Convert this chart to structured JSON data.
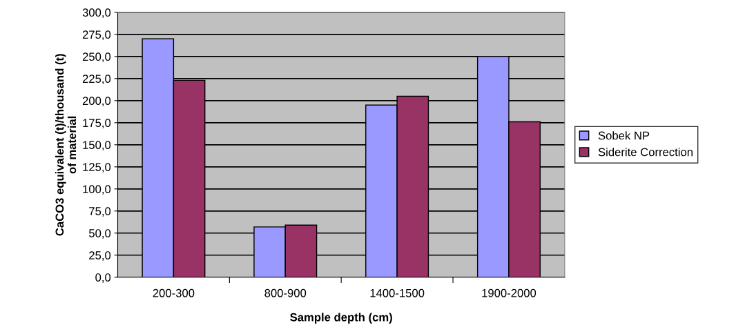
{
  "chart_data": {
    "type": "bar",
    "xlabel": "Sample depth (cm)",
    "ylabel": "CaCO3 equivalent (t)/thousand (t)\nof material",
    "categories": [
      "200-300",
      "800-900",
      "1400-1500",
      "1900-2000"
    ],
    "series": [
      {
        "name": "Sobek NP",
        "color": "#9999ff",
        "values": [
          270,
          57,
          195,
          250
        ]
      },
      {
        "name": "Siderite Correction",
        "color": "#993366",
        "values": [
          223,
          59,
          205,
          176
        ]
      }
    ],
    "ylim": [
      0,
      300
    ],
    "yticks": [
      {
        "value": 0,
        "label": "0,0"
      },
      {
        "value": 25,
        "label": "25,0"
      },
      {
        "value": 50,
        "label": "50,0"
      },
      {
        "value": 75,
        "label": "75,0"
      },
      {
        "value": 100,
        "label": "100,0"
      },
      {
        "value": 125,
        "label": "125,0"
      },
      {
        "value": 150,
        "label": "150,0"
      },
      {
        "value": 175,
        "label": "175,0"
      },
      {
        "value": 200,
        "label": "200,0"
      },
      {
        "value": 225,
        "label": "225,0"
      },
      {
        "value": 250,
        "label": "250,0"
      },
      {
        "value": 275,
        "label": "275,0"
      },
      {
        "value": 300,
        "label": "300,0"
      }
    ],
    "grid": "y",
    "legend": "right"
  }
}
